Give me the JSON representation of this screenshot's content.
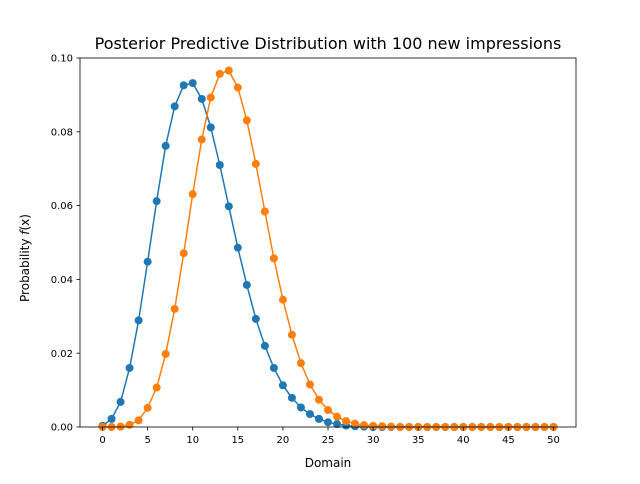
{
  "chart_data": {
    "type": "line",
    "title": "Posterior Predictive Distribution with 100 new impressions",
    "xlabel": "Domain",
    "ylabel_prefix": "Probability ",
    "ylabel_var": "f",
    "ylabel_suffix": "(x)",
    "xlim": [
      -2.5,
      52.5
    ],
    "ylim": [
      0,
      0.1
    ],
    "x_ticks": [
      0,
      5,
      10,
      15,
      20,
      25,
      30,
      35,
      40,
      45,
      50
    ],
    "x_tick_labels": [
      "0",
      "5",
      "10",
      "15",
      "20",
      "25",
      "30",
      "35",
      "40",
      "45",
      "50"
    ],
    "y_ticks": [
      0,
      0.02,
      0.04,
      0.06,
      0.08,
      0.1
    ],
    "y_tick_labels": [
      "0.00",
      "0.02",
      "0.04",
      "0.06",
      "0.08",
      "0.10"
    ],
    "grid": false,
    "marker": "circle",
    "x": [
      0,
      1,
      2,
      3,
      4,
      5,
      6,
      7,
      8,
      9,
      10,
      11,
      12,
      13,
      14,
      15,
      16,
      17,
      18,
      19,
      20,
      21,
      22,
      23,
      24,
      25,
      26,
      27,
      28,
      29,
      30,
      31,
      32,
      33,
      34,
      35,
      36,
      37,
      38,
      39,
      40,
      41,
      42,
      43,
      44,
      45,
      46,
      47,
      48,
      49,
      50
    ],
    "series": [
      {
        "color": "#1f77b4",
        "values": [
          0.0003,
          0.0022,
          0.0068,
          0.016,
          0.0289,
          0.0448,
          0.0612,
          0.0762,
          0.0869,
          0.0926,
          0.0932,
          0.0889,
          0.0812,
          0.071,
          0.0598,
          0.0486,
          0.0385,
          0.0293,
          0.022,
          0.016,
          0.0113,
          0.0079,
          0.0053,
          0.0035,
          0.0022,
          0.0013,
          0.0008,
          0.0004,
          0.0002,
          0.0001,
          0,
          0,
          0,
          0,
          0,
          0,
          0,
          0,
          0,
          0,
          0,
          0,
          0,
          0,
          0,
          0,
          0,
          0,
          0,
          0,
          0
        ]
      },
      {
        "color": "#ff7f0e",
        "values": [
          0,
          0,
          0.0001,
          0.0006,
          0.0018,
          0.0052,
          0.0107,
          0.0198,
          0.032,
          0.0471,
          0.0631,
          0.0779,
          0.0893,
          0.0957,
          0.0966,
          0.092,
          0.0831,
          0.0713,
          0.0584,
          0.0457,
          0.0345,
          0.025,
          0.0173,
          0.0115,
          0.0074,
          0.0046,
          0.0028,
          0.0016,
          0.0009,
          0.0005,
          0.0003,
          0.0002,
          0.0001,
          0,
          0,
          0,
          0,
          0,
          0,
          0,
          0,
          0,
          0,
          0,
          0,
          0,
          0,
          0,
          0,
          0,
          0
        ]
      }
    ]
  }
}
